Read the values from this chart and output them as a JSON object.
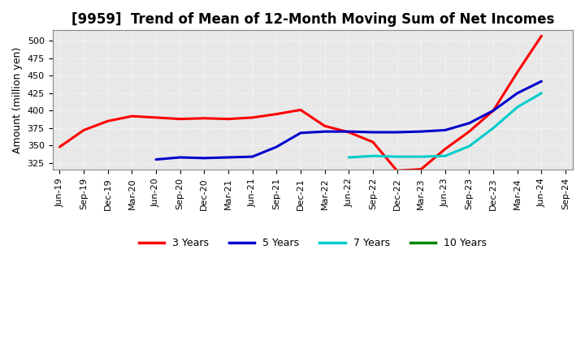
{
  "title": "[9959]  Trend of Mean of 12-Month Moving Sum of Net Incomes",
  "ylabel": "Amount (million yen)",
  "plot_bg_color": "#e8e8e8",
  "fig_bg_color": "#ffffff",
  "grid_color": "#ffffff",
  "ylim": [
    315,
    515
  ],
  "yticks": [
    325,
    350,
    375,
    400,
    425,
    450,
    475,
    500
  ],
  "x_labels": [
    "Jun-19",
    "Sep-19",
    "Dec-19",
    "Mar-20",
    "Jun-20",
    "Sep-20",
    "Dec-20",
    "Mar-21",
    "Jun-21",
    "Sep-21",
    "Dec-21",
    "Mar-22",
    "Jun-22",
    "Sep-22",
    "Dec-22",
    "Mar-23",
    "Jun-23",
    "Sep-23",
    "Dec-23",
    "Mar-24",
    "Jun-24",
    "Sep-24"
  ],
  "series_order": [
    "3 Years",
    "5 Years",
    "7 Years",
    "10 Years"
  ],
  "series": {
    "3 Years": {
      "color": "#ff0000",
      "values": [
        348,
        372,
        385,
        392,
        390,
        388,
        389,
        388,
        390,
        395,
        401,
        378,
        369,
        355,
        314,
        316,
        345,
        370,
        400,
        455,
        507,
        null
      ]
    },
    "5 Years": {
      "color": "#0000cc",
      "values": [
        null,
        null,
        null,
        null,
        330,
        333,
        332,
        333,
        334,
        348,
        368,
        370,
        370,
        369,
        369,
        370,
        372,
        382,
        400,
        425,
        442,
        null
      ]
    },
    "7 Years": {
      "color": "#00cccc",
      "values": [
        null,
        null,
        null,
        null,
        null,
        null,
        null,
        null,
        null,
        null,
        null,
        null,
        333,
        335,
        334,
        334,
        335,
        349,
        375,
        405,
        425,
        null
      ]
    },
    "10 Years": {
      "color": "#008800",
      "values": [
        null,
        null,
        null,
        null,
        null,
        null,
        null,
        null,
        null,
        null,
        null,
        null,
        null,
        null,
        null,
        null,
        null,
        null,
        null,
        null,
        null,
        null
      ]
    }
  },
  "legend": {
    "labels": [
      "3 Years",
      "5 Years",
      "7 Years",
      "10 Years"
    ],
    "colors": [
      "#ff0000",
      "#0000cc",
      "#00cccc",
      "#008800"
    ]
  },
  "title_fontsize": 12,
  "axis_label_fontsize": 9,
  "tick_fontsize": 8,
  "legend_fontsize": 9,
  "linewidth": 2.2
}
